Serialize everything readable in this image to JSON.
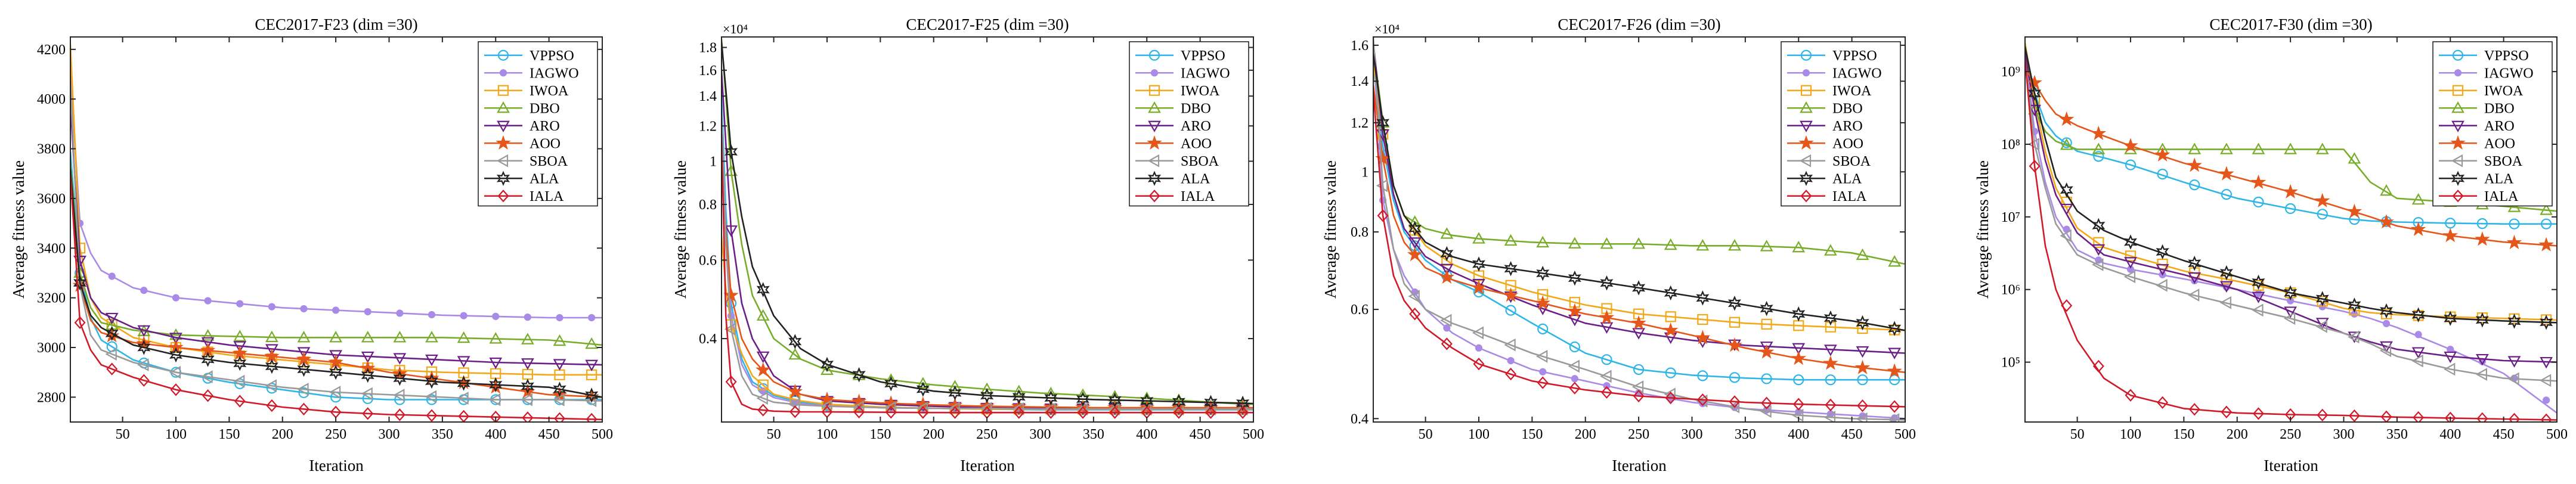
{
  "figure": {
    "panel_count": 4
  },
  "legend_order": [
    "VPPSO",
    "IAGWO",
    "IWOA",
    "DBO",
    "ARO",
    "AOO",
    "SBOA",
    "ALA",
    "IALA"
  ],
  "series_styles": {
    "VPPSO": {
      "color": "#2eb6e6",
      "marker": "circle",
      "label": "VPPSO"
    },
    "IAGWO": {
      "color": "#a98ae6",
      "marker": "dot",
      "label": "IAGWO"
    },
    "IWOA": {
      "color": "#f2a818",
      "marker": "square",
      "label": "IWOA"
    },
    "DBO": {
      "color": "#78ac2a",
      "marker": "triangle-up",
      "label": "DBO"
    },
    "ARO": {
      "color": "#6a1e86",
      "marker": "triangle-down",
      "label": "ARO"
    },
    "AOO": {
      "color": "#e5561a",
      "marker": "star",
      "label": "AOO"
    },
    "SBOA": {
      "color": "#9a9a9a",
      "marker": "triangle-left",
      "label": "SBOA"
    },
    "ALA": {
      "color": "#222222",
      "marker": "hexagram",
      "label": "ALA"
    },
    "IALA": {
      "color": "#d01a2a",
      "marker": "diamond",
      "label": "IALA"
    }
  },
  "chart_data": [
    {
      "type": "line",
      "title": "CEC2017-F23 (dim =30)",
      "xlabel": "Iteration",
      "ylabel": "Average fitness value",
      "xlim": [
        1,
        500
      ],
      "ylim": [
        2700,
        4250
      ],
      "yscale": "linear",
      "xticks": [
        50,
        100,
        150,
        200,
        250,
        300,
        350,
        400,
        450,
        500
      ],
      "yticks": [
        2800,
        3000,
        3200,
        3400,
        3600,
        3800,
        4000,
        4200
      ],
      "ytick_labels": [
        "2800",
        "3000",
        "3200",
        "3400",
        "3600",
        "3800",
        "4000",
        "4200"
      ],
      "exponent_label": "",
      "grid": false,
      "legend": "top-right",
      "x": [
        1,
        10,
        20,
        30,
        60,
        100,
        150,
        200,
        250,
        300,
        350,
        400,
        450,
        500
      ],
      "series": [
        {
          "name": "VPPSO",
          "values": [
            3790,
            3300,
            3120,
            3030,
            2950,
            2900,
            2860,
            2830,
            2800,
            2790,
            2790,
            2790,
            2790,
            2790
          ]
        },
        {
          "name": "IAGWO",
          "values": [
            4110,
            3500,
            3380,
            3310,
            3240,
            3200,
            3180,
            3160,
            3150,
            3140,
            3130,
            3125,
            3120,
            3120
          ]
        },
        {
          "name": "IWOA",
          "values": [
            4220,
            3400,
            3200,
            3120,
            3040,
            3000,
            2970,
            2950,
            2930,
            2910,
            2900,
            2895,
            2890,
            2890
          ]
        },
        {
          "name": "DBO",
          "values": [
            3740,
            3300,
            3160,
            3100,
            3070,
            3050,
            3045,
            3040,
            3040,
            3040,
            3040,
            3035,
            3030,
            3010
          ]
        },
        {
          "name": "ARO",
          "values": [
            3980,
            3350,
            3200,
            3140,
            3080,
            3040,
            3010,
            2990,
            2970,
            2960,
            2950,
            2940,
            2935,
            2930
          ]
        },
        {
          "name": "AOO",
          "values": [
            3700,
            3250,
            3110,
            3060,
            3020,
            3000,
            2980,
            2960,
            2940,
            2900,
            2870,
            2840,
            2810,
            2800
          ]
        },
        {
          "name": "SBOA",
          "values": [
            4060,
            3250,
            3050,
            2990,
            2940,
            2900,
            2870,
            2840,
            2820,
            2810,
            2800,
            2790,
            2790,
            2785
          ]
        },
        {
          "name": "ALA",
          "values": [
            3720,
            3260,
            3130,
            3080,
            3010,
            2970,
            2940,
            2920,
            2900,
            2880,
            2860,
            2850,
            2840,
            2800
          ]
        },
        {
          "name": "IALA",
          "values": [
            3700,
            3100,
            2990,
            2930,
            2880,
            2830,
            2790,
            2760,
            2740,
            2730,
            2725,
            2720,
            2715,
            2710
          ]
        }
      ]
    },
    {
      "type": "line",
      "title": "CEC2017-F25 (dim =30)",
      "xlabel": "Iteration",
      "ylabel": "Average fitness value",
      "xlim": [
        1,
        500
      ],
      "ylim": [
        2600,
        19000
      ],
      "yscale": "log",
      "xticks": [
        50,
        100,
        150,
        200,
        250,
        300,
        350,
        400,
        450,
        500
      ],
      "yticks": [
        4000,
        6000,
        8000,
        10000,
        12000,
        14000,
        16000,
        18000
      ],
      "ytick_labels": [
        "0.4",
        "0.6",
        "0.8",
        "1",
        "1.2",
        "1.4",
        "1.6",
        "1.8"
      ],
      "exponent_label": "×10⁴",
      "grid": false,
      "legend": "top-right",
      "x": [
        1,
        5,
        10,
        20,
        30,
        50,
        75,
        100,
        150,
        200,
        250,
        300,
        350,
        400,
        450,
        480,
        500
      ],
      "series": [
        {
          "name": "VPPSO",
          "values": [
            14000,
            7800,
            4800,
            3600,
            3200,
            2980,
            2880,
            2830,
            2800,
            2790,
            2780,
            2770,
            2770,
            2770,
            2770,
            2770,
            2770
          ]
        },
        {
          "name": "IAGWO",
          "values": [
            12500,
            7000,
            4500,
            3500,
            3150,
            2950,
            2860,
            2830,
            2800,
            2790,
            2780,
            2780,
            2780,
            2780,
            2780,
            2780,
            2780
          ]
        },
        {
          "name": "IWOA",
          "values": [
            6800,
            5200,
            4300,
            3700,
            3300,
            3000,
            2900,
            2850,
            2810,
            2790,
            2780,
            2780,
            2780,
            2780,
            2780,
            2780,
            2780
          ]
        },
        {
          "name": "DBO",
          "values": [
            18800,
            14000,
            9500,
            6500,
            5000,
            4000,
            3600,
            3400,
            3250,
            3150,
            3080,
            3020,
            2980,
            2940,
            2890,
            2860,
            2850
          ]
        },
        {
          "name": "ARO",
          "values": [
            16000,
            11000,
            7000,
            4800,
            4000,
            3300,
            3000,
            2900,
            2850,
            2820,
            2800,
            2790,
            2790,
            2790,
            2790,
            2790,
            2790
          ]
        },
        {
          "name": "AOO",
          "values": [
            10200,
            7000,
            5000,
            4000,
            3600,
            3200,
            3000,
            2920,
            2870,
            2840,
            2820,
            2810,
            2800,
            2800,
            2800,
            2800,
            2800
          ]
        },
        {
          "name": "SBOA",
          "values": [
            13000,
            6500,
            4200,
            3300,
            3000,
            2880,
            2840,
            2820,
            2800,
            2790,
            2790,
            2780,
            2780,
            2780,
            2780,
            2780,
            2780
          ]
        },
        {
          "name": "ALA",
          "values": [
            18500,
            14500,
            10500,
            7500,
            5800,
            4500,
            3800,
            3500,
            3200,
            3050,
            2980,
            2950,
            2920,
            2900,
            2880,
            2870,
            2860
          ]
        },
        {
          "name": "IALA",
          "values": [
            11500,
            4500,
            3200,
            2850,
            2780,
            2750,
            2740,
            2740,
            2735,
            2730,
            2730,
            2730,
            2730,
            2730,
            2730,
            2730,
            2730
          ]
        }
      ]
    },
    {
      "type": "line",
      "title": "CEC2017-F26 (dim =30)",
      "xlabel": "Iteration",
      "ylabel": "Average fitness value",
      "xlim": [
        1,
        500
      ],
      "ylim": [
        3950,
        16500
      ],
      "yscale": "log",
      "xticks": [
        50,
        100,
        150,
        200,
        250,
        300,
        350,
        400,
        450,
        500
      ],
      "yticks": [
        4000,
        6000,
        8000,
        10000,
        12000,
        14000,
        16000
      ],
      "ytick_labels": [
        "0.4",
        "0.6",
        "0.8",
        "1",
        "1.2",
        "1.4",
        "1.6"
      ],
      "exponent_label": "×10⁴",
      "grid": false,
      "legend": "top-right",
      "x": [
        1,
        10,
        20,
        30,
        50,
        75,
        100,
        150,
        200,
        250,
        300,
        350,
        400,
        450,
        500
      ],
      "series": [
        {
          "name": "VPPSO",
          "values": [
            14800,
            11000,
            9000,
            8000,
            7200,
            6700,
            6400,
            5700,
            5100,
            4800,
            4700,
            4650,
            4620,
            4620,
            4620
          ]
        },
        {
          "name": "IAGWO",
          "values": [
            15800,
            9000,
            7500,
            6800,
            6000,
            5500,
            5200,
            4800,
            4600,
            4400,
            4250,
            4150,
            4100,
            4050,
            4000
          ]
        },
        {
          "name": "IWOA",
          "values": [
            15000,
            11500,
            9500,
            8500,
            7600,
            7100,
            6800,
            6400,
            6100,
            5900,
            5800,
            5700,
            5650,
            5600,
            5550
          ]
        },
        {
          "name": "DBO",
          "values": [
            16000,
            12000,
            9500,
            8500,
            8100,
            7900,
            7800,
            7700,
            7650,
            7650,
            7600,
            7600,
            7550,
            7400,
            7100
          ]
        },
        {
          "name": "ARO",
          "values": [
            16200,
            11500,
            9200,
            8100,
            7300,
            6900,
            6600,
            6100,
            5700,
            5500,
            5350,
            5250,
            5200,
            5150,
            5100
          ]
        },
        {
          "name": "AOO",
          "values": [
            13800,
            10500,
            8500,
            7700,
            7000,
            6700,
            6500,
            6200,
            5900,
            5700,
            5450,
            5200,
            5000,
            4850,
            4750
          ]
        },
        {
          "name": "SBOA",
          "values": [
            16500,
            9500,
            7500,
            6600,
            6000,
            5700,
            5500,
            5100,
            4800,
            4500,
            4300,
            4150,
            4050,
            4000,
            3980
          ]
        },
        {
          "name": "ALA",
          "values": [
            15500,
            12000,
            9500,
            8500,
            7700,
            7300,
            7100,
            6900,
            6700,
            6500,
            6300,
            6100,
            5900,
            5750,
            5550
          ]
        },
        {
          "name": "IALA",
          "values": [
            13500,
            8500,
            6800,
            6200,
            5600,
            5200,
            4900,
            4600,
            4450,
            4350,
            4300,
            4250,
            4220,
            4200,
            4180
          ]
        }
      ]
    },
    {
      "type": "line",
      "title": "CEC2017-F30 (dim =30)",
      "xlabel": "Iteration",
      "ylabel": "Average fitness value",
      "xlim": [
        1,
        500
      ],
      "ylim": [
        15000,
        3000000000
      ],
      "yscale": "log",
      "xticks": [
        50,
        100,
        150,
        200,
        250,
        300,
        350,
        400,
        450,
        500
      ],
      "yticks": [
        100000,
        1000000,
        10000000,
        100000000,
        1000000000
      ],
      "ytick_labels": [
        "10⁵",
        "10⁶",
        "10⁷",
        "10⁸",
        "10⁹"
      ],
      "exponent_label": "",
      "grid": false,
      "legend": "top-right",
      "x": [
        1,
        10,
        20,
        30,
        50,
        75,
        100,
        150,
        200,
        250,
        300,
        325,
        350,
        400,
        450,
        500
      ],
      "series": [
        {
          "name": "VPPSO",
          "values": [
            1400000000,
            500000000,
            200000000,
            130000000,
            80000000,
            65000000,
            52000000,
            30000000,
            18000000,
            13000000,
            9500000,
            8800000,
            8500000,
            8200000,
            8000000,
            8000000
          ]
        },
        {
          "name": "IAGWO",
          "values": [
            2000000000,
            150000000,
            30000000,
            10000000,
            3500000,
            2300000,
            1900000,
            1400000,
            1000000,
            700000,
            500000,
            400000,
            300000,
            150000,
            70000,
            20000
          ]
        },
        {
          "name": "IWOA",
          "values": [
            2500000000,
            400000000,
            80000000,
            25000000,
            7000000,
            3800000,
            2900000,
            1800000,
            1300000,
            900000,
            550000,
            480000,
            450000,
            420000,
            400000,
            380000
          ]
        },
        {
          "name": "DBO",
          "values": [
            2300000000,
            300000000,
            150000000,
            110000000,
            85000000,
            85000000,
            85000000,
            85000000,
            85000000,
            85000000,
            85000000,
            30000000,
            18000000,
            16000000,
            14000000,
            12000000
          ]
        },
        {
          "name": "ARO",
          "values": [
            1800000000,
            300000000,
            60000000,
            20000000,
            6000000,
            3000000,
            2400000,
            1600000,
            1000000,
            500000,
            250000,
            190000,
            150000,
            120000,
            105000,
            100000
          ]
        },
        {
          "name": "AOO",
          "values": [
            1100000000,
            700000000,
            400000000,
            260000000,
            180000000,
            130000000,
            95000000,
            55000000,
            35000000,
            22000000,
            13000000,
            10000000,
            7500000,
            5500000,
            4500000,
            4000000
          ]
        },
        {
          "name": "SBOA",
          "values": [
            1500000000,
            100000000,
            25000000,
            8000000,
            3000000,
            2000000,
            1500000,
            900000,
            600000,
            400000,
            250000,
            180000,
            120000,
            80000,
            60000,
            55000
          ]
        },
        {
          "name": "ALA",
          "values": [
            2200000000,
            500000000,
            120000000,
            35000000,
            12000000,
            6500000,
            4500000,
            2500000,
            1500000,
            900000,
            650000,
            550000,
            480000,
            400000,
            370000,
            350000
          ]
        },
        {
          "name": "IALA",
          "values": [
            1500000000,
            50000000,
            4000000,
            1000000,
            200000,
            60000,
            35000,
            23000,
            20000,
            19000,
            18500,
            18000,
            17500,
            17000,
            16500,
            16000
          ]
        }
      ]
    }
  ]
}
